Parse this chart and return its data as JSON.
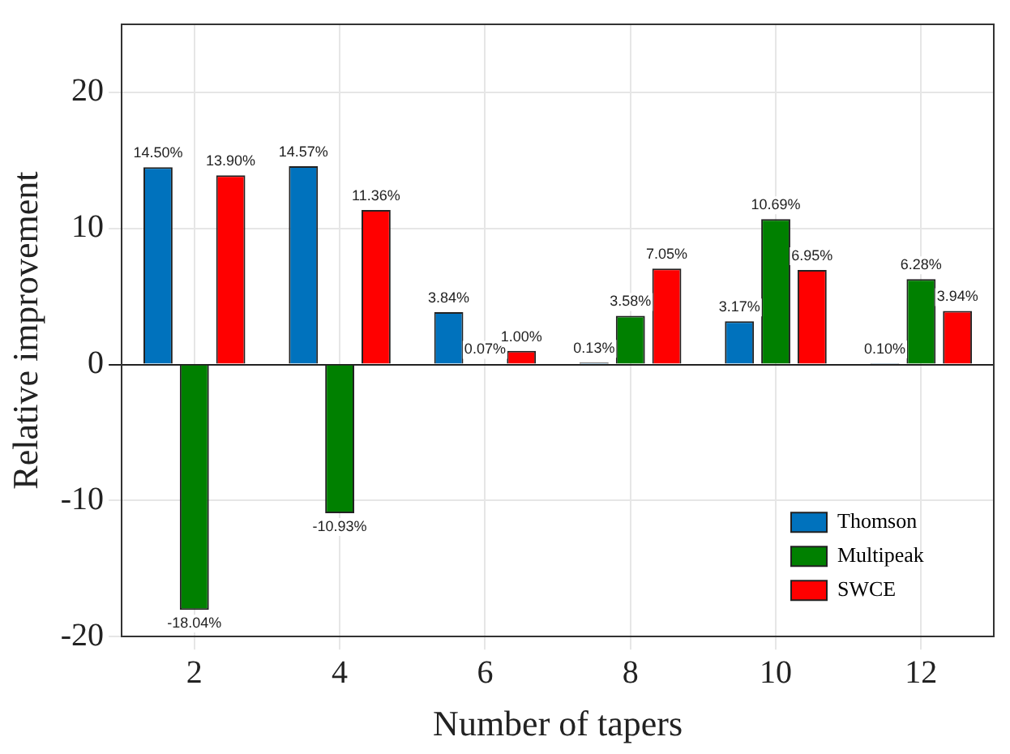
{
  "chart_data": {
    "type": "bar",
    "xlabel": "Number of tapers",
    "ylabel": "Relative improvement",
    "categories": [
      "2",
      "4",
      "6",
      "8",
      "10",
      "12"
    ],
    "series": [
      {
        "name": "Thomson",
        "color": "#0072bd",
        "values": [
          14.5,
          14.57,
          3.84,
          0.13,
          3.17,
          0.1
        ],
        "value_labels": [
          "14.50%",
          "14.57%",
          "3.84%",
          "0.13%",
          "3.17%",
          "0.10%"
        ]
      },
      {
        "name": "Multipeak",
        "color": "#008000",
        "values": [
          -18.04,
          -10.93,
          0.07,
          3.58,
          10.69,
          6.28
        ],
        "value_labels": [
          "-18.04%",
          "-10.93%",
          "0.07%",
          "3.58%",
          "10.69%",
          "6.28%"
        ]
      },
      {
        "name": "SWCE",
        "color": "#ff0000",
        "values": [
          13.9,
          11.36,
          1.0,
          7.05,
          6.95,
          3.94
        ],
        "value_labels": [
          "13.90%",
          "11.36%",
          "1.00%",
          "7.05%",
          "6.95%",
          "3.94%"
        ]
      }
    ],
    "ylim": [
      -20,
      25
    ],
    "yticks": [
      -20,
      -10,
      0,
      10,
      20
    ],
    "grid": true,
    "legend": "bottom right"
  }
}
